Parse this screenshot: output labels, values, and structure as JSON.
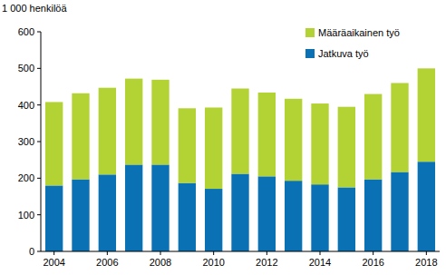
{
  "chart_data": {
    "type": "bar",
    "stacked": true,
    "y_label": "1 000 henkilöä",
    "categories": [
      "2004",
      null,
      "2006",
      null,
      "2008",
      null,
      "2010",
      null,
      "2012",
      null,
      "2014",
      null,
      "2016",
      null,
      "2018"
    ],
    "series": [
      {
        "name": "Jatkuva työ",
        "color": "#0a72b4",
        "values": [
          180,
          197,
          210,
          237,
          237,
          187,
          171,
          212,
          205,
          193,
          183,
          175,
          197,
          217,
          245
        ]
      },
      {
        "name": "Määräaikainen työ",
        "color": "#b3d335",
        "values": [
          228,
          235,
          237,
          235,
          232,
          204,
          222,
          233,
          229,
          224,
          221,
          220,
          233,
          243,
          255
        ]
      }
    ],
    "ylim": [
      0,
      600
    ],
    "yticks": [
      0,
      100,
      200,
      300,
      400,
      500,
      600
    ],
    "grid": false,
    "legend": "top-right"
  }
}
